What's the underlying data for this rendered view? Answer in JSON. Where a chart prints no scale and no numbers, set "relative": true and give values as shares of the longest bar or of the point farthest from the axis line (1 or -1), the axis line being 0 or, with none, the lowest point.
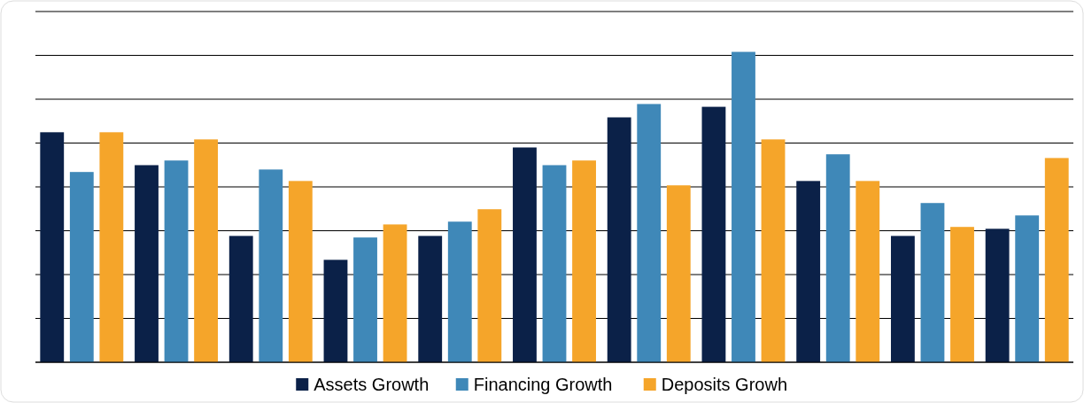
{
  "chart_data": {
    "type": "bar",
    "relative": true,
    "grid": true,
    "legend": "bottom",
    "categories": [
      null,
      null,
      null,
      null,
      null,
      null,
      null,
      null,
      null,
      null,
      null
    ],
    "series": [
      {
        "name": "Assets Growth",
        "color": "#0b2148",
        "values": [
          0.741,
          0.635,
          0.407,
          0.33,
          0.407,
          0.692,
          0.789,
          0.823,
          0.584,
          0.407,
          0.43
        ]
      },
      {
        "name": "Financing Growth",
        "color": "#3f88b8",
        "values": [
          0.613,
          0.65,
          0.621,
          0.402,
          0.453,
          0.635,
          0.832,
          1,
          0.67,
          0.513,
          0.473
        ]
      },
      {
        "name": "Deposits Growh",
        "color": "#f5a52a",
        "values": [
          0.741,
          0.718,
          0.584,
          0.444,
          0.493,
          0.65,
          0.57,
          0.718,
          0.584,
          0.436,
          0.658
        ]
      }
    ]
  }
}
